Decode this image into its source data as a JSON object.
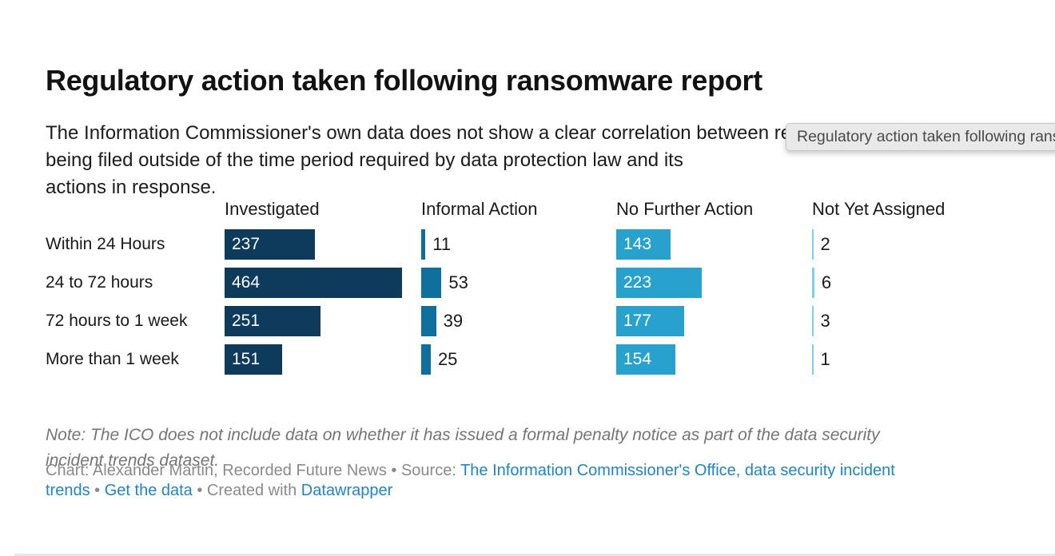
{
  "chart": {
    "title": "Regulatory action taken following ransomware report",
    "subtitle": "The Information Commissioner's own data does not show a clear correlation between reports\nbeing filed outside of the time period required by data protection law and its\nactions in response."
  },
  "tooltip": {
    "text": "Regulatory action taken following ransomware report"
  },
  "chart_data": {
    "type": "bar",
    "orientation": "horizontal",
    "title": "Regulatory action taken following ransomware report",
    "categories": [
      "Within 24 Hours",
      "24 to 72 hours",
      "72 hours to 1 week",
      "More than 1 week"
    ],
    "series": [
      {
        "name": "Investigated",
        "color": "#0e3a5c",
        "value_label": "inside",
        "values": [
          237,
          464,
          251,
          151
        ]
      },
      {
        "name": "Informal Action",
        "color": "#0f6f9c",
        "value_label": "outside",
        "values": [
          11,
          53,
          39,
          25
        ]
      },
      {
        "name": "No Further Action",
        "color": "#28a2cc",
        "value_label": "inside",
        "values": [
          143,
          223,
          177,
          154
        ]
      },
      {
        "name": "Not Yet Assigned",
        "color": "#79d1ea",
        "value_label": "outside",
        "values": [
          2,
          6,
          3,
          1
        ]
      }
    ],
    "value_range": [
      0,
      464
    ],
    "grid": false,
    "legend": "column-headers"
  },
  "note": {
    "text": "Note: The ICO does not include data on whether it has issued a formal penalty notice as part of the data security\nincident trends dataset."
  },
  "credits": {
    "lines": [
      {
        "segments": [
          {
            "text": "Chart: Alexander Martin, Recorded Future News • Source: ",
            "link": false
          },
          {
            "text": "The Information Commissioner's Office, data security incident",
            "link": true
          }
        ]
      },
      {
        "segments": [
          {
            "text": "trends",
            "link": true
          },
          {
            "text": " • ",
            "link": false
          },
          {
            "text": "Get the data",
            "link": true
          },
          {
            "text": " • ",
            "link": false
          },
          {
            "text": "Created with ",
            "link": false
          },
          {
            "text": "Datawrapper",
            "link": true
          }
        ]
      }
    ]
  },
  "colors": {
    "bar_navy": "#0e3a5c",
    "bar_medium_blue": "#0f6f9c",
    "bar_light_blue": "#28a2cc",
    "bar_pale_cyan": "#79d1ea",
    "link_blue": "#1d85c5",
    "muted_text": "#8a8a8a",
    "tooltip_bg": "#e9e9e9"
  }
}
